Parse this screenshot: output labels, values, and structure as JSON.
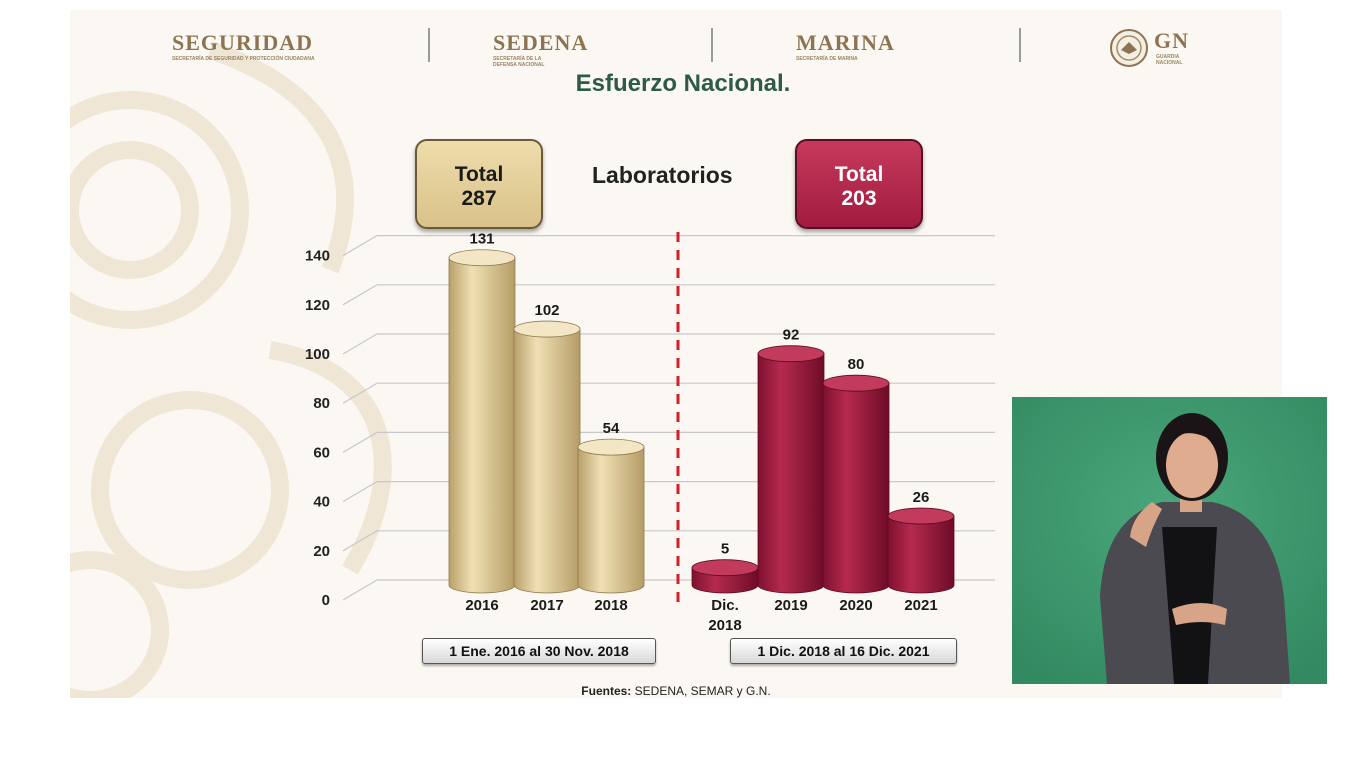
{
  "header": {
    "logos": [
      {
        "name": "SEGURIDAD",
        "sub": "SECRETARÍA DE SEGURIDAD Y PROTECCIÓN CIUDADANA"
      },
      {
        "name": "SEDENA",
        "sub": "SECRETARÍA DE LA DEFENSA NACIONAL"
      },
      {
        "name": "MARINA",
        "sub": "SECRETARÍA DE MARINA"
      },
      {
        "name": "GN",
        "sub": "GUARDIA NACIONAL"
      }
    ]
  },
  "slide": {
    "title": "Esfuerzo Nacional.",
    "subtitle": "Laboratorios",
    "total_left": {
      "label": "Total",
      "value": "287"
    },
    "total_right": {
      "label": "Total",
      "value": "203"
    },
    "period_left": "1 Ene. 2016 al 30 Nov. 2018",
    "period_right": "1 Dic. 2018 al 16 Dic. 2021",
    "source_label": "Fuentes:",
    "source_text": "SEDENA, SEMAR y G.N."
  },
  "colors": {
    "gold": "#d9c590",
    "crimson": "#a8193f",
    "divider": "#d0202a",
    "title": "#2d5b46"
  },
  "chart_data": {
    "type": "bar",
    "title": "Laboratorios",
    "ylim": [
      0,
      140
    ],
    "yticks": [
      0,
      20,
      40,
      60,
      80,
      100,
      120,
      140
    ],
    "grid": true,
    "series": [
      {
        "categories": [
          "2016",
          "2017",
          "2018"
        ],
        "values": [
          131,
          102,
          54
        ],
        "color": "gold"
      },
      {
        "categories": [
          "Dic. 2018",
          "2019",
          "2020",
          "2021"
        ],
        "values": [
          5,
          92,
          80,
          26
        ],
        "color": "crimson"
      }
    ]
  }
}
